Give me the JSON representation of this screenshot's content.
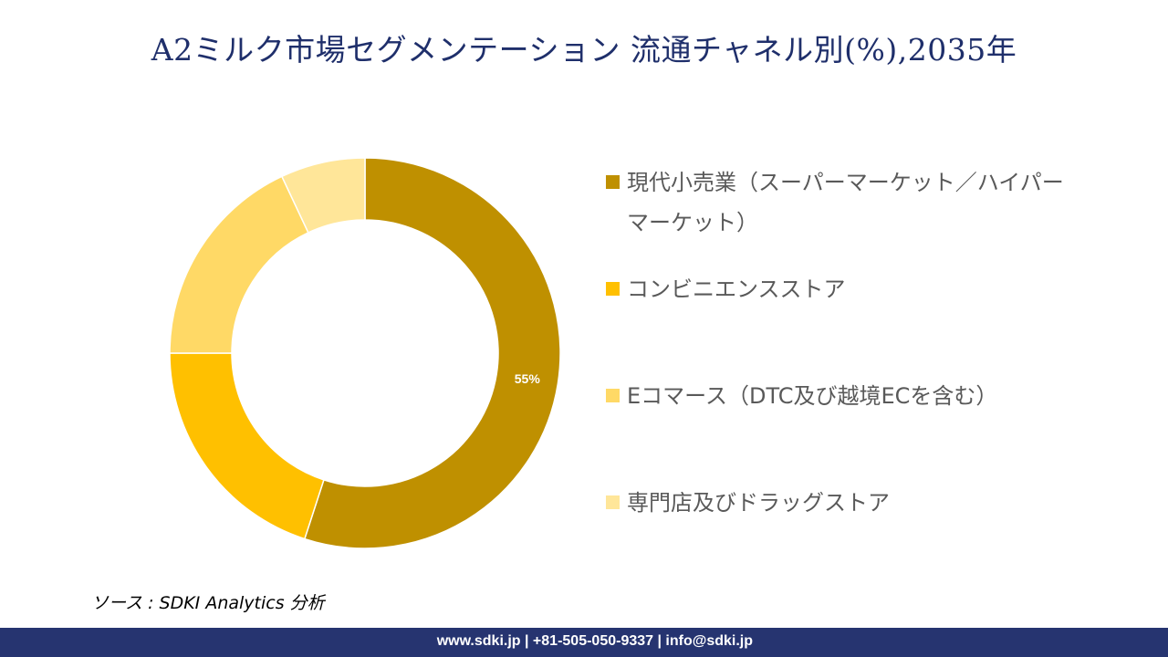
{
  "title": "A2ミルク市場セグメンテーション 流通チャネル別(%),2035年",
  "chart_data": {
    "type": "pie",
    "subtype": "donut",
    "title": "A2ミルク市場セグメンテーション 流通チャネル別(%),2035年",
    "categories": [
      "現代小売業（スーパーマーケット／ハイパーマーケット）",
      "コンビニエンスストア",
      "Eコマース（DTC及び越境ECを含む）",
      "専門店及びドラッグストア"
    ],
    "values": [
      55,
      20,
      18,
      7
    ],
    "colors": [
      "#BF9000",
      "#FFC000",
      "#FFD966",
      "#FFE699"
    ],
    "data_labels": [
      "55%",
      "",
      "",
      ""
    ],
    "legend_position": "right"
  },
  "source": "ソース : SDKI Analytics 分析",
  "footer": "www.sdki.jp | +81-505-050-9337 | info@sdki.jp"
}
